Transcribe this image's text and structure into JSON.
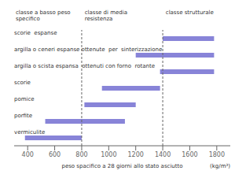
{
  "chart_data": {
    "type": "bar",
    "orientation": "horizontal",
    "categories": [
      "scorie  espanse",
      "argilla o ceneri espanse ottenute  per  sinterizzazione",
      "argilla o scista espansa  ottenuti con forno  rotante",
      "scorie",
      "pomice",
      "porfite",
      "vermiculite"
    ],
    "values": [
      [
        1400,
        1780
      ],
      [
        1200,
        1780
      ],
      [
        1380,
        1780
      ],
      [
        950,
        1380
      ],
      [
        820,
        1200
      ],
      [
        530,
        1120
      ],
      [
        380,
        800
      ]
    ],
    "xlabel": "peso spacifico a 28 giorni allo stato asciutto",
    "xunit": "(kg/m³)",
    "xlim": [
      300,
      1900
    ],
    "xticks": [
      400,
      600,
      800,
      1000,
      1200,
      1400,
      1600,
      1800
    ],
    "vlines": [
      800,
      1400
    ],
    "annotations": [
      {
        "text": "classe a basso peso\nspecifico",
        "x": 300
      },
      {
        "text": "classe di media\nresistenza",
        "x": 810
      },
      {
        "text": "classe strutturale",
        "x": 1410
      }
    ],
    "grid": false
  }
}
